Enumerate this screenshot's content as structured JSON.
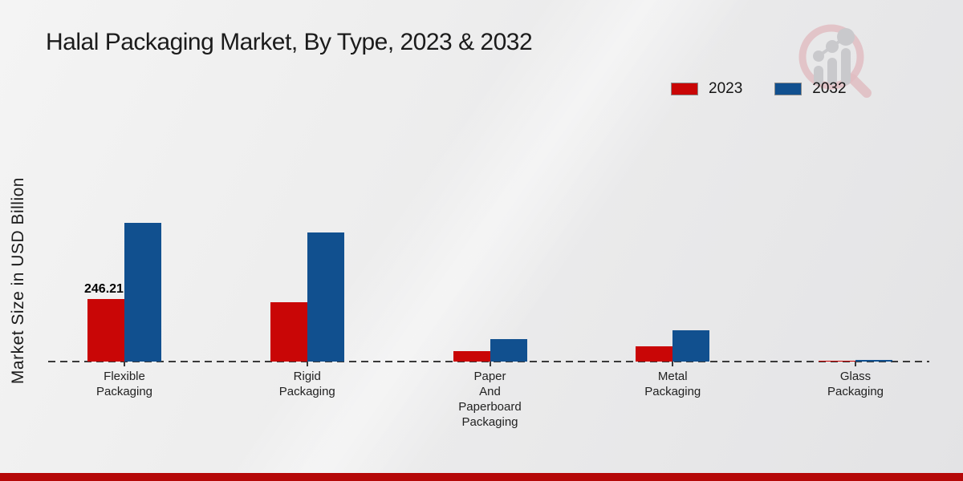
{
  "title": "Halal Packaging Market, By Type, 2023 & 2032",
  "y_axis_label": "Market Size in USD Billion",
  "legend": {
    "items": [
      {
        "label": "2023",
        "color": "#c90606"
      },
      {
        "label": "2032",
        "color": "#11508f"
      }
    ]
  },
  "colors": {
    "series_2023": "#c90606",
    "series_2032": "#11508f",
    "axis": "#3a3a3a",
    "footer_band": "#b50808",
    "background": "#ececec"
  },
  "annotation": {
    "category": "Flexible Packaging",
    "series": "2023",
    "text": "246.21"
  },
  "logo": {
    "name": "market-research-magnifier-logo"
  },
  "chart_data": {
    "type": "bar",
    "title": "Halal Packaging Market, By Type, 2023 & 2032",
    "ylabel": "Market Size in USD Billion",
    "categories": [
      "Flexible Packaging",
      "Rigid Packaging",
      "Paper And Paperboard Packaging",
      "Metal Packaging",
      "Glass Packaging"
    ],
    "category_label_lines": [
      [
        "Flexible",
        "Packaging"
      ],
      [
        "Rigid",
        "Packaging"
      ],
      [
        "Paper",
        "And",
        "Paperboard",
        "Packaging"
      ],
      [
        "Metal",
        "Packaging"
      ],
      [
        "Glass",
        "Packaging"
      ]
    ],
    "series": [
      {
        "name": "2023",
        "color": "#c90606",
        "values": [
          246.21,
          233.5,
          41.0,
          60.0,
          2.0
        ]
      },
      {
        "name": "2032",
        "color": "#11508f",
        "values": [
          546.2,
          508.3,
          88.1,
          123.2,
          6.0
        ]
      }
    ],
    "data_labels": {
      "series": "2023",
      "values": [
        "246.21",
        null,
        null,
        null,
        null
      ]
    },
    "ylim": [
      0,
      570
    ],
    "grid": false,
    "y_axis_ticks_visible": false,
    "legend_position": "top-right"
  }
}
